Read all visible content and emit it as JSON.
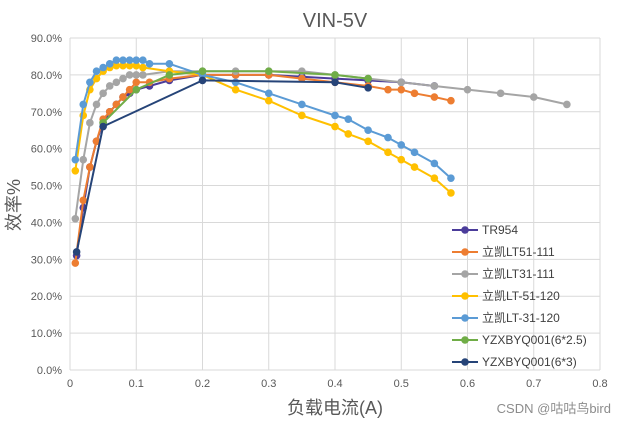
{
  "watermark": "CSDN @咕咕鸟bird",
  "chart_data": {
    "type": "line",
    "title": "VIN-5V",
    "xlabel": "负载电流(A)",
    "ylabel": "效率%",
    "xlim": [
      0,
      0.8
    ],
    "ylim": [
      0,
      0.9
    ],
    "x_ticks": [
      "0",
      "0.1",
      "0.2",
      "0.3",
      "0.4",
      "0.5",
      "0.6",
      "0.7",
      "0.8"
    ],
    "y_ticks": [
      "0.0%",
      "10.0%",
      "20.0%",
      "30.0%",
      "40.0%",
      "50.0%",
      "60.0%",
      "70.0%",
      "80.0%",
      "90.0%"
    ],
    "grid": true,
    "legend_position": "right",
    "series": [
      {
        "name": "TR954",
        "color": "#4B3C9A",
        "x": [
          0.01,
          0.02,
          0.03,
          0.04,
          0.05,
          0.06,
          0.07,
          0.08,
          0.09,
          0.1,
          0.12,
          0.15,
          0.2,
          0.25,
          0.3,
          0.35,
          0.4,
          0.45,
          0.5,
          0.55
        ],
        "y": [
          0.31,
          0.44,
          0.55,
          0.62,
          0.67,
          0.7,
          0.72,
          0.74,
          0.75,
          0.76,
          0.77,
          0.785,
          0.8,
          0.8,
          0.8,
          0.795,
          0.79,
          0.785,
          0.78,
          0.77
        ]
      },
      {
        "name": "立凯LT51-111",
        "color": "#ED7D31",
        "x": [
          0.008,
          0.02,
          0.03,
          0.04,
          0.05,
          0.06,
          0.07,
          0.08,
          0.09,
          0.1,
          0.12,
          0.15,
          0.2,
          0.25,
          0.3,
          0.35,
          0.4,
          0.45,
          0.48,
          0.5,
          0.52,
          0.55,
          0.575
        ],
        "y": [
          0.29,
          0.46,
          0.55,
          0.62,
          0.68,
          0.7,
          0.72,
          0.74,
          0.76,
          0.78,
          0.78,
          0.79,
          0.8,
          0.8,
          0.8,
          0.79,
          0.78,
          0.77,
          0.76,
          0.76,
          0.75,
          0.74,
          0.73
        ]
      },
      {
        "name": "立凯LT31-111",
        "color": "#A5A5A5",
        "x": [
          0.008,
          0.02,
          0.03,
          0.04,
          0.05,
          0.06,
          0.07,
          0.08,
          0.09,
          0.1,
          0.11,
          0.15,
          0.2,
          0.25,
          0.3,
          0.35,
          0.4,
          0.45,
          0.5,
          0.55,
          0.6,
          0.65,
          0.7,
          0.75
        ],
        "y": [
          0.41,
          0.57,
          0.67,
          0.72,
          0.75,
          0.77,
          0.78,
          0.79,
          0.8,
          0.8,
          0.8,
          0.81,
          0.81,
          0.81,
          0.81,
          0.81,
          0.8,
          0.79,
          0.78,
          0.77,
          0.76,
          0.75,
          0.74,
          0.72
        ]
      },
      {
        "name": "立凯LT-51-120",
        "color": "#FFC000",
        "x": [
          0.008,
          0.02,
          0.03,
          0.04,
          0.05,
          0.06,
          0.07,
          0.08,
          0.09,
          0.1,
          0.11,
          0.15,
          0.2,
          0.25,
          0.3,
          0.35,
          0.4,
          0.42,
          0.45,
          0.48,
          0.5,
          0.52,
          0.55,
          0.575
        ],
        "y": [
          0.54,
          0.69,
          0.76,
          0.79,
          0.81,
          0.82,
          0.825,
          0.825,
          0.825,
          0.825,
          0.82,
          0.81,
          0.8,
          0.76,
          0.73,
          0.69,
          0.66,
          0.64,
          0.62,
          0.59,
          0.57,
          0.55,
          0.52,
          0.48
        ]
      },
      {
        "name": "立凯LT-31-120",
        "color": "#5B9BD5",
        "x": [
          0.008,
          0.02,
          0.03,
          0.04,
          0.05,
          0.06,
          0.07,
          0.08,
          0.09,
          0.1,
          0.11,
          0.12,
          0.15,
          0.2,
          0.25,
          0.3,
          0.35,
          0.4,
          0.42,
          0.45,
          0.48,
          0.5,
          0.52,
          0.55,
          0.575
        ],
        "y": [
          0.57,
          0.72,
          0.78,
          0.81,
          0.82,
          0.83,
          0.84,
          0.84,
          0.84,
          0.84,
          0.84,
          0.83,
          0.83,
          0.8,
          0.78,
          0.75,
          0.72,
          0.69,
          0.68,
          0.65,
          0.63,
          0.61,
          0.59,
          0.56,
          0.52
        ]
      },
      {
        "name": "YZXBYQ001(6*2.5)",
        "color": "#70AD47",
        "x": [
          0.05,
          0.1,
          0.15,
          0.2,
          0.3,
          0.4,
          0.45
        ],
        "y": [
          0.67,
          0.76,
          0.8,
          0.81,
          0.81,
          0.8,
          0.79
        ]
      },
      {
        "name": "YZXBYQ001(6*3)",
        "color": "#264478",
        "x": [
          0.01,
          0.05,
          0.2,
          0.4,
          0.45
        ],
        "y": [
          0.32,
          0.66,
          0.785,
          0.78,
          0.765
        ]
      }
    ]
  }
}
